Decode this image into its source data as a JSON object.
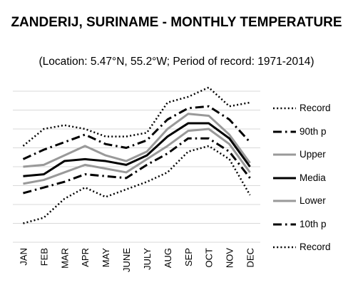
{
  "chart_data": {
    "type": "line",
    "title": "ZANDERIJ, SURINAME - MONTHLY TEMPERATURE",
    "subtitle": "(Location: 5.47°N, 55.2°W; Period of record: 1971-2014)",
    "categories": [
      "JAN",
      "FEB",
      "MAR",
      "APR",
      "MAY",
      "JUNE",
      "JULY",
      "AUG",
      "SEP",
      "OCT",
      "NOV",
      "DEC"
    ],
    "grid": true,
    "y_tick_labels_visible": false,
    "ylim": [
      0,
      8
    ],
    "legend_position": "right",
    "series": [
      {
        "name": "Record",
        "style": "dotted",
        "color": "#000000",
        "width": 2.5,
        "values": [
          5.1,
          6.0,
          6.2,
          6.0,
          5.6,
          5.6,
          5.8,
          7.4,
          7.7,
          8.2,
          7.2,
          7.4
        ]
      },
      {
        "name": "90th p",
        "style": "dashdot",
        "color": "#000000",
        "width": 3,
        "values": [
          4.4,
          4.9,
          5.3,
          5.7,
          5.2,
          5.0,
          5.4,
          6.5,
          7.1,
          7.2,
          6.5,
          5.3
        ]
      },
      {
        "name": "Upper",
        "style": "solid",
        "color": "#999999",
        "width": 3,
        "values": [
          4.0,
          4.1,
          4.6,
          5.1,
          4.6,
          4.3,
          4.8,
          6.0,
          6.8,
          6.7,
          5.7,
          4.2
        ]
      },
      {
        "name": "Media",
        "style": "solid",
        "color": "#000000",
        "width": 3,
        "values": [
          3.5,
          3.6,
          4.3,
          4.4,
          4.3,
          4.1,
          4.6,
          5.6,
          6.3,
          6.3,
          5.5,
          4.0
        ]
      },
      {
        "name": "Lower",
        "style": "solid",
        "color": "#999999",
        "width": 3,
        "values": [
          3.1,
          3.3,
          3.7,
          4.1,
          3.9,
          3.7,
          4.4,
          5.1,
          5.9,
          6.0,
          5.2,
          3.7
        ]
      },
      {
        "name": "10th p",
        "style": "dashdot",
        "color": "#000000",
        "width": 3,
        "values": [
          2.6,
          2.9,
          3.2,
          3.6,
          3.5,
          3.4,
          4.1,
          4.7,
          5.5,
          5.5,
          4.8,
          3.4
        ]
      },
      {
        "name": "Record",
        "style": "dotted",
        "color": "#000000",
        "width": 2.5,
        "values": [
          1.0,
          1.3,
          2.3,
          2.9,
          2.4,
          2.8,
          3.2,
          3.7,
          4.8,
          5.1,
          4.4,
          2.5
        ]
      }
    ]
  }
}
